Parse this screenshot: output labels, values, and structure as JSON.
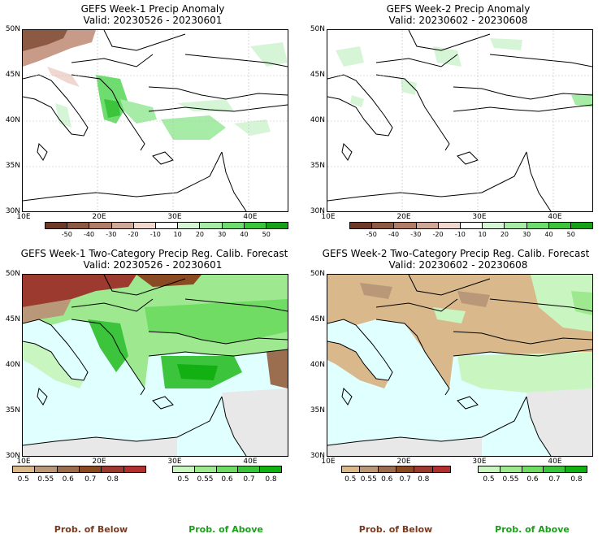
{
  "panels": [
    {
      "title": "GEFS Week-1 Precip Anomaly",
      "valid": "Valid: 20230526 - 20230601"
    },
    {
      "title": "GEFS Week-2 Precip Anomaly",
      "valid": "Valid: 20230602 - 20230608"
    },
    {
      "title": "GEFS Week-1 Two-Category Precip Reg. Calib. Forecast",
      "valid": "Valid: 20230526 - 20230601"
    },
    {
      "title": "GEFS Week-2 Two-Category Precip Reg. Calib. Forecast",
      "valid": "Valid: 20230602 - 20230608"
    }
  ],
  "lat_labels": [
    "50N",
    "45N",
    "40N",
    "35N",
    "30N"
  ],
  "lon_labels": [
    "10E",
    "20E",
    "30E",
    "40E"
  ],
  "anomaly_colorbar": {
    "ticks": [
      "-50",
      "-40",
      "-30",
      "-20",
      "-10",
      "10",
      "20",
      "30",
      "40",
      "50"
    ],
    "colors": [
      "#6b3a2a",
      "#8c5a44",
      "#b07d68",
      "#d0a898",
      "#f0d8d0",
      "#ffffff",
      "#d6f5d6",
      "#a6eca6",
      "#6fdc6f",
      "#3cc43c",
      "#18a018"
    ]
  },
  "below_colorbar": {
    "ticks": [
      "0.5",
      "0.55",
      "0.6",
      "0.7",
      "0.8"
    ],
    "colors": [
      "#d9b88c",
      "#b89878",
      "#9a6e4e",
      "#8a4a22",
      "#9c3a30",
      "#b03030"
    ]
  },
  "above_colorbar": {
    "ticks": [
      "0.5",
      "0.55",
      "0.6",
      "0.7",
      "0.8"
    ],
    "colors": [
      "#c8f5c0",
      "#9ee890",
      "#70dc64",
      "#3cc43c",
      "#12b012"
    ]
  },
  "labels": {
    "prob_below": "Prob. of Below",
    "prob_above": "Prob. of Above"
  },
  "colors": {
    "below_label": "#7a3a1e",
    "above_label": "#1aa01a",
    "sea": "#e0ffff",
    "land_out": "#e8e8e8"
  }
}
